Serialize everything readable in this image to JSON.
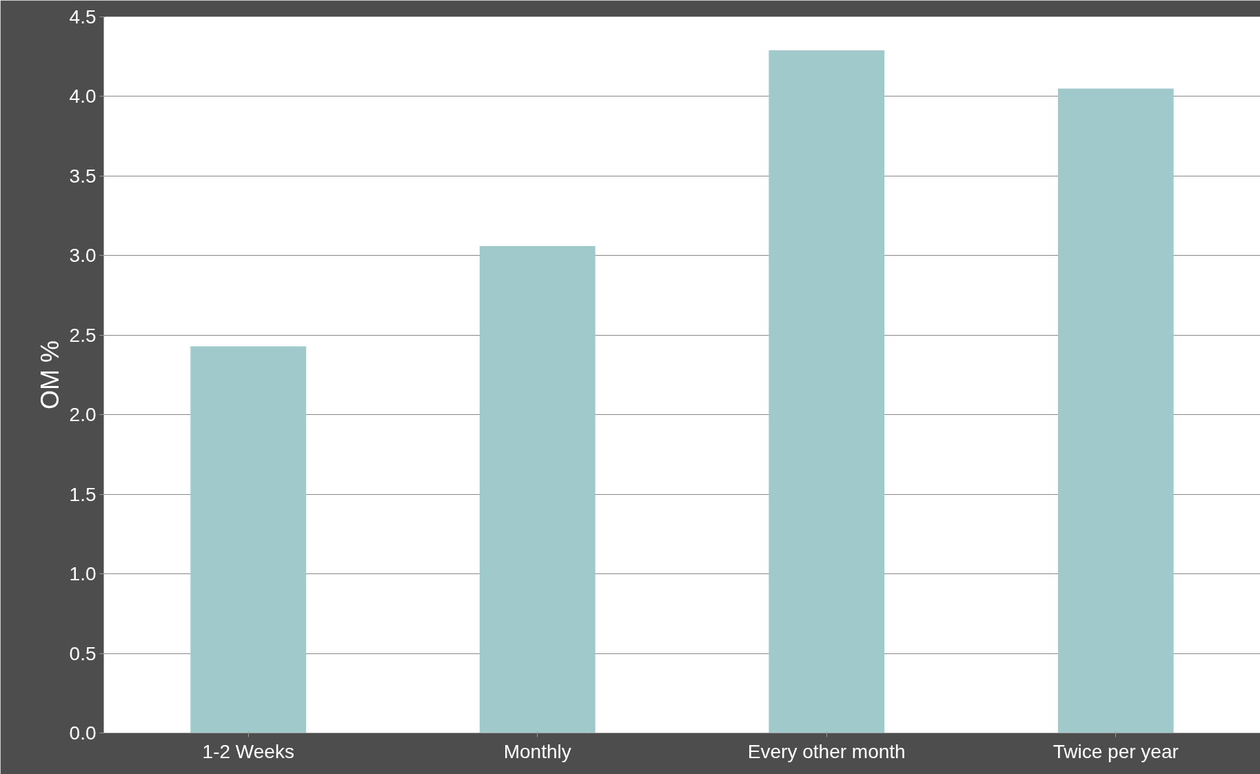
{
  "chart_data": {
    "type": "bar",
    "ylabel": "OM %",
    "categories": [
      "1-2 Weeks",
      "Monthly",
      "Every other month",
      "Twice per year"
    ],
    "values": [
      2.43,
      3.06,
      4.29,
      4.05
    ],
    "color": "#a0c9cc",
    "ylim": [
      0,
      4.5
    ],
    "yticks": [
      {
        "value": 0,
        "label": "0.0"
      },
      {
        "value": 0.5,
        "label": "0.5"
      },
      {
        "value": 1,
        "label": "1.0"
      },
      {
        "value": 1.5,
        "label": "1.5"
      },
      {
        "value": 2,
        "label": "2.0"
      },
      {
        "value": 2.5,
        "label": "2.5"
      },
      {
        "value": 3,
        "label": "3.0"
      },
      {
        "value": 3.5,
        "label": "3.5"
      },
      {
        "value": 4,
        "label": "4.0"
      },
      {
        "value": 4.5,
        "label": "4.5"
      }
    ],
    "grid": "y"
  }
}
